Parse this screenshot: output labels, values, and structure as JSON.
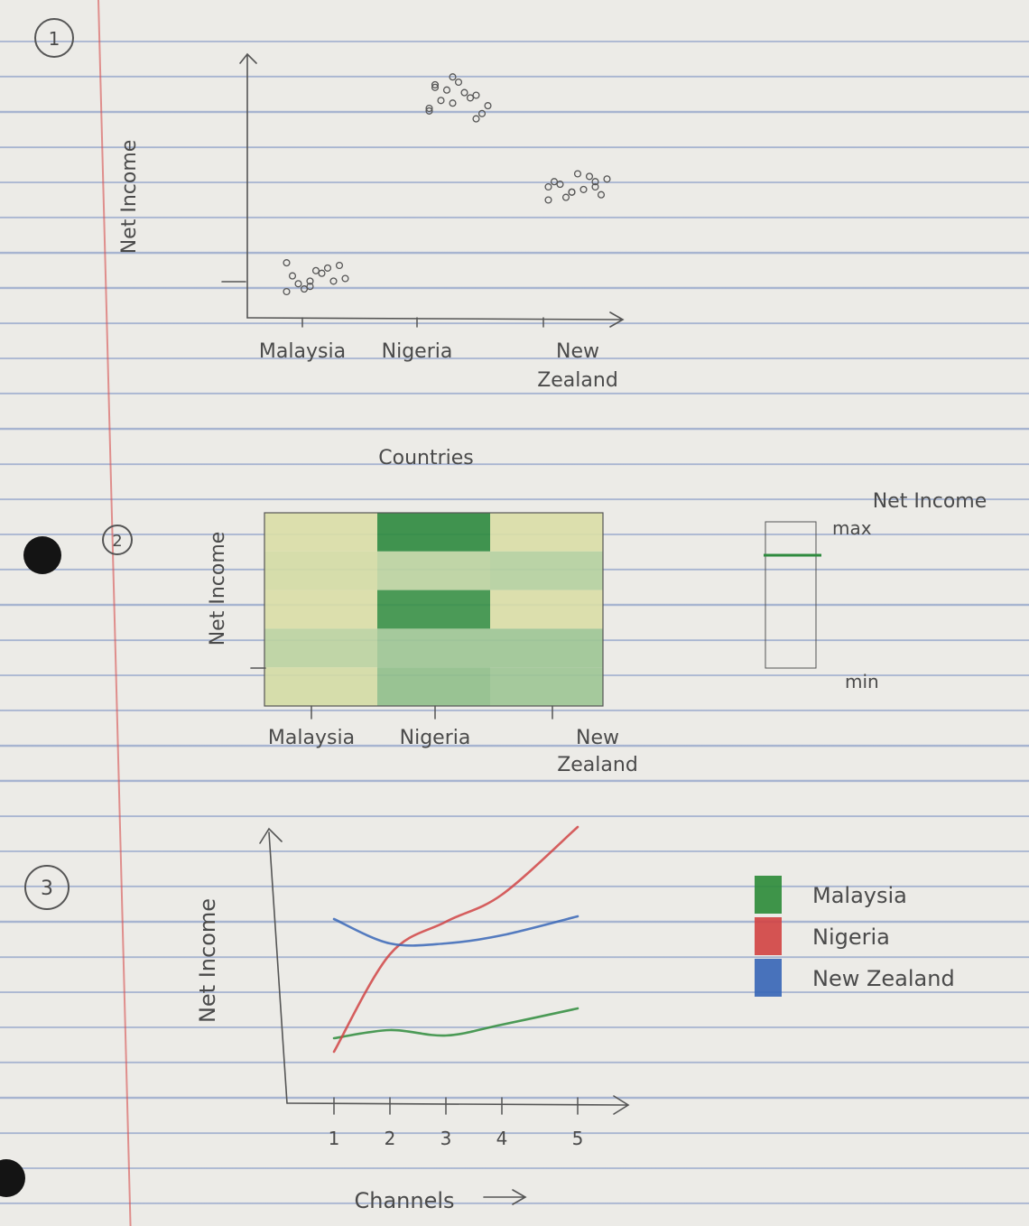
{
  "sections": [
    {
      "number": "1"
    },
    {
      "number": "2"
    },
    {
      "number": "3"
    }
  ],
  "chart_data": [
    {
      "type": "scatter",
      "title": "",
      "xlabel": "Countries",
      "ylabel": "Net Income",
      "categories": [
        "Malaysia",
        "Nigeria",
        "New Zealand"
      ],
      "category_tick_labels": [
        "Malaysia",
        "Nigeria",
        "New\nZealand"
      ],
      "series": [
        {
          "category": "Malaysia",
          "points": [
            0.1,
            0.12,
            0.14,
            0.16,
            0.18,
            0.2,
            0.13,
            0.17,
            0.15,
            0.11,
            0.19,
            0.21,
            0.14
          ]
        },
        {
          "category": "Nigeria",
          "points": [
            0.8,
            0.82,
            0.85,
            0.88,
            0.9,
            0.78,
            0.83,
            0.86,
            0.81,
            0.87,
            0.84,
            0.79,
            0.92,
            0.76,
            0.89
          ]
        },
        {
          "category": "New Zealand",
          "points": [
            0.45,
            0.48,
            0.5,
            0.52,
            0.55,
            0.47,
            0.51,
            0.49,
            0.53,
            0.46,
            0.54,
            0.5,
            0.48,
            0.52
          ]
        }
      ]
    },
    {
      "type": "heatmap",
      "title": "",
      "xlabel": "",
      "ylabel": "Net Income",
      "categories": [
        "Malaysia",
        "Nigeria",
        "New Zealand"
      ],
      "category_tick_labels": [
        "Malaysia",
        "Nigeria",
        "New\nZealand"
      ],
      "rows_top_to_bottom": [
        [
          0.1,
          1.0,
          0.1
        ],
        [
          0.15,
          0.35,
          0.4
        ],
        [
          0.1,
          0.95,
          0.1
        ],
        [
          0.35,
          0.55,
          0.55
        ],
        [
          0.15,
          0.6,
          0.55
        ]
      ],
      "colorbar": {
        "title": "Net Income",
        "max_label": "max",
        "min_label": "min",
        "low_color": "#e6e2a8",
        "high_color": "#2e8a3e"
      }
    },
    {
      "type": "line",
      "title": "",
      "xlabel": "Channels",
      "ylabel": "Net Income",
      "x": [
        1,
        2,
        3,
        4,
        5
      ],
      "x_tick_labels": [
        "1",
        "2",
        "3",
        "4",
        "5"
      ],
      "ylim": [
        0,
        1
      ],
      "series": [
        {
          "name": "Malaysia",
          "color": "#2f8c3c",
          "values": [
            0.24,
            0.27,
            0.25,
            0.29,
            0.35
          ]
        },
        {
          "name": "Nigeria",
          "color": "#d14545",
          "values": [
            0.19,
            0.55,
            0.67,
            0.77,
            1.02
          ]
        },
        {
          "name": "New Zealand",
          "color": "#3a67b7",
          "values": [
            0.68,
            0.59,
            0.59,
            0.62,
            0.69
          ]
        }
      ]
    }
  ]
}
